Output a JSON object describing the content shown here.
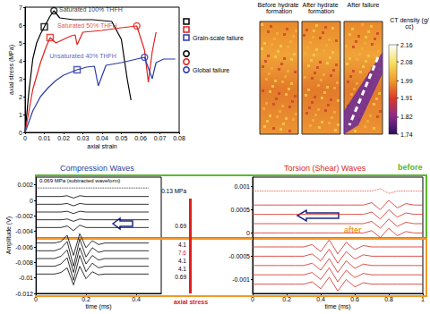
{
  "chart_data": [
    {
      "type": "line",
      "xlabel": "axial strain",
      "ylabel": "axial stress (MPa)",
      "xlim": [
        0,
        0.08
      ],
      "xticks": [
        0,
        0.01,
        0.02,
        0.03,
        0.04,
        0.05,
        0.06,
        0.07,
        0.08
      ],
      "ylim": [
        0,
        7
      ],
      "yticks": [
        0,
        1,
        2,
        3,
        4,
        5,
        6,
        7
      ],
      "grid": false,
      "legend": "right",
      "series": [
        {
          "color": "#000000",
          "line_style": "solid",
          "x": [
            0,
            0.002,
            0.004,
            0.006,
            0.008,
            0.01,
            0.013,
            0.015,
            0.018,
            0.025,
            0.035,
            0.045,
            0.05,
            0.053,
            0.055
          ],
          "values": [
            0,
            2.3,
            4.1,
            5.0,
            5.5,
            5.9,
            6.5,
            6.8,
            6.4,
            6.3,
            6.3,
            6.2,
            5.2,
            3.0,
            1.8
          ]
        },
        {
          "color": "#e0201b",
          "line_style": "solid",
          "x": [
            0,
            0.004,
            0.008,
            0.011,
            0.013,
            0.016,
            0.02,
            0.024,
            0.026,
            0.027,
            0.03,
            0.04,
            0.05,
            0.058,
            0.062,
            0.064,
            0.066,
            0.068
          ],
          "values": [
            0,
            2.4,
            3.9,
            4.8,
            5.3,
            5.0,
            5.2,
            5.4,
            5.45,
            4.9,
            5.6,
            5.7,
            5.85,
            5.95,
            4.6,
            2.8,
            4.5,
            5.6
          ]
        },
        {
          "color": "#2a3aa8",
          "line_style": "solid",
          "x": [
            0,
            0.004,
            0.008,
            0.012,
            0.016,
            0.02,
            0.027,
            0.032,
            0.036,
            0.038,
            0.042,
            0.05,
            0.058,
            0.062,
            0.066,
            0.068,
            0.072,
            0.078
          ],
          "values": [
            0,
            1.2,
            2.0,
            2.5,
            2.9,
            3.2,
            3.5,
            3.65,
            3.7,
            2.6,
            3.75,
            3.9,
            4.1,
            4.2,
            3.0,
            3.9,
            4.1,
            4.1
          ]
        },
        {
          "name": "Grain-scale failure",
          "type": "scatter",
          "marker": "square",
          "x": [
            0.01,
            0.013,
            0.027
          ],
          "values": [
            5.9,
            5.3,
            3.5
          ],
          "colors": [
            "#000000",
            "#e0201b",
            "#2a3aa8"
          ]
        },
        {
          "name": "Global failure",
          "type": "scatter",
          "marker": "circle",
          "x": [
            0.015,
            0.058,
            0.062
          ],
          "values": [
            6.8,
            5.95,
            4.2
          ],
          "colors": [
            "#000000",
            "#e0201b",
            "#2a3aa8"
          ]
        }
      ],
      "annotations": [
        {
          "text": "Saturated 100% THFH",
          "x": 0.017,
          "y": 6.9,
          "color": "#000000"
        },
        {
          "text": "Saturated 50% THFH",
          "x": 0.016,
          "y": 6.0,
          "color": "#e0201b"
        },
        {
          "text": "Unsaturated 40% THFH",
          "x": 0.012,
          "y": 4.3,
          "color": "#2a3aa8"
        }
      ]
    },
    {
      "type": "line",
      "title": "Compression Waves",
      "color": "#2b3f9e",
      "xlabel": "time (ms)",
      "ylabel": "Amplitude (V)",
      "xlim": [
        0,
        0.5
      ],
      "xticks": [
        0,
        0.2,
        0.4
      ],
      "ylim": [
        -0.012,
        0.003
      ],
      "yticks": [
        0.002,
        0,
        -0.002,
        -0.004,
        -0.006,
        -0.008,
        -0.01,
        -0.012
      ],
      "grid": false,
      "x": [
        0,
        0.025,
        0.05,
        0.075,
        0.1,
        0.125,
        0.15,
        0.175,
        0.2,
        0.225,
        0.25,
        0.275,
        0.3,
        0.325,
        0.35,
        0.375,
        0.4,
        0.425,
        0.45
      ],
      "series": [
        {
          "color": "#000000",
          "line_style": "dotted",
          "values": [
            0.0016,
            0.0016,
            0.0016,
            0.0016,
            0.0016,
            0.0016,
            0.0016,
            0.0016,
            0.0016,
            0.0016,
            0.0016,
            0.0016,
            0.0016,
            0.0016,
            0.0016,
            0.0016,
            0.0016,
            0.0016,
            0.0016
          ]
        },
        {
          "color": "#000000",
          "line_style": "solid",
          "values": [
            0.0005,
            0.0005,
            0.0005,
            0.0005,
            0.0005,
            0.0006,
            0.0003,
            0.0006,
            0.0005,
            0.0005,
            0.0005,
            0.0005,
            0.0005,
            0.0005,
            0.0005,
            0.0005,
            0.0005,
            0.0005,
            0.0005
          ]
        },
        {
          "color": "#000000",
          "line_style": "solid",
          "values": [
            -0.0005,
            -0.0005,
            -0.0005,
            -0.0005,
            -0.0005,
            -0.0004,
            -0.0007,
            -0.0004,
            -0.0005,
            -0.0005,
            -0.0005,
            -0.0005,
            -0.0005,
            -0.0005,
            -0.0005,
            -0.0005,
            -0.0005,
            -0.0005,
            -0.0005
          ]
        },
        {
          "color": "#000000",
          "line_style": "solid",
          "values": [
            -0.0015,
            -0.0015,
            -0.0015,
            -0.0015,
            -0.0015,
            -0.0014,
            -0.0017,
            -0.0014,
            -0.0015,
            -0.0015,
            -0.0015,
            -0.0015,
            -0.0015,
            -0.0015,
            -0.0015,
            -0.0015,
            -0.0015,
            -0.0015,
            -0.0015
          ]
        },
        {
          "color": "#000000",
          "line_style": "solid",
          "values": [
            -0.0025,
            -0.0025,
            -0.0025,
            -0.0025,
            -0.0025,
            -0.0024,
            -0.0027,
            -0.0024,
            -0.0025,
            -0.0025,
            -0.0025,
            -0.0025,
            -0.0025,
            -0.0025,
            -0.0025,
            -0.0025,
            -0.0025,
            -0.0025,
            -0.0025
          ]
        },
        {
          "color": "#000000",
          "line_style": "solid",
          "values": [
            -0.0035,
            -0.0035,
            -0.0035,
            -0.0035,
            -0.0035,
            -0.0033,
            -0.0039,
            -0.0032,
            -0.0035,
            -0.0035,
            -0.0035,
            -0.0035,
            -0.0035,
            -0.0035,
            -0.0035,
            -0.0035,
            -0.0035,
            -0.0035,
            -0.0035
          ]
        },
        {
          "color": "#000000",
          "line_style": "solid",
          "values": [
            -0.0055,
            -0.0055,
            -0.0055,
            -0.0055,
            -0.0053,
            -0.0045,
            -0.0071,
            -0.0043,
            -0.0061,
            -0.0052,
            -0.0057,
            -0.0055,
            -0.0055,
            -0.0055,
            -0.0055,
            -0.0055,
            -0.0055,
            -0.0055,
            -0.0055
          ]
        },
        {
          "color": "#000000",
          "line_style": "solid",
          "values": [
            -0.0065,
            -0.0065,
            -0.0065,
            -0.0065,
            -0.0062,
            -0.0053,
            -0.0085,
            -0.005,
            -0.0073,
            -0.0061,
            -0.0067,
            -0.0065,
            -0.0065,
            -0.0065,
            -0.0065,
            -0.0065,
            -0.0065,
            -0.0065,
            -0.0065
          ]
        },
        {
          "color": "#000000",
          "line_style": "solid",
          "values": [
            -0.0075,
            -0.0075,
            -0.0075,
            -0.0075,
            -0.0072,
            -0.0064,
            -0.0093,
            -0.0061,
            -0.0082,
            -0.0071,
            -0.0077,
            -0.0075,
            -0.0075,
            -0.0075,
            -0.0075,
            -0.0075,
            -0.0075,
            -0.0075,
            -0.0075
          ]
        },
        {
          "color": "#000000",
          "line_style": "solid",
          "values": [
            -0.0085,
            -0.0085,
            -0.0085,
            -0.0085,
            -0.0082,
            -0.0074,
            -0.0103,
            -0.0071,
            -0.0092,
            -0.0081,
            -0.0087,
            -0.0085,
            -0.0085,
            -0.0085,
            -0.0085,
            -0.0085,
            -0.0085,
            -0.0085,
            -0.0085
          ]
        },
        {
          "color": "#000000",
          "line_style": "solid",
          "values": [
            -0.0095,
            -0.0095,
            -0.0095,
            -0.0095,
            -0.0093,
            -0.0087,
            -0.0109,
            -0.0085,
            -0.0101,
            -0.0092,
            -0.0096,
            -0.0095,
            -0.0095,
            -0.0095,
            -0.0095,
            -0.0095,
            -0.0095,
            -0.0095,
            -0.0095
          ]
        }
      ],
      "annotations": [
        {
          "text": "0.069 MPa (subtracted waveform)"
        }
      ]
    },
    {
      "type": "line",
      "title": "Torsion (Shear) Waves",
      "color": "#d42a20",
      "xlabel": "time (ms)",
      "xlim": [
        0,
        1
      ],
      "xticks": [
        0,
        0.2,
        0.4,
        0.6,
        0.8,
        1
      ],
      "ylim": [
        -0.0013,
        0.0012
      ],
      "yticks": [
        0.001,
        0.0005,
        0,
        -0.0005,
        -0.001
      ],
      "grid": false,
      "x": [
        0,
        0.05,
        0.1,
        0.15,
        0.2,
        0.25,
        0.3,
        0.35,
        0.4,
        0.45,
        0.5,
        0.55,
        0.6,
        0.65,
        0.7,
        0.75,
        0.8,
        0.85,
        0.9,
        0.95,
        1
      ],
      "series": [
        {
          "color": "#d42a20",
          "line_style": "dotted",
          "values": [
            0.0009,
            0.0009,
            0.0009,
            0.0009,
            0.0009,
            0.0009,
            0.0009,
            0.0009,
            0.0009,
            0.0009,
            0.0009,
            0.0009,
            0.0009,
            0.0009,
            0.0009,
            0.00095,
            0.00085,
            0.0009,
            0.0009,
            0.0009,
            0.0009
          ]
        },
        {
          "color": "#d42a20",
          "line_style": "solid",
          "values": [
            0.0006,
            0.0006,
            0.0006,
            0.0006,
            0.0006,
            0.0006,
            0.0006,
            0.0006,
            0.0006,
            0.0006,
            0.0006,
            0.0006,
            0.0006,
            0.0006,
            0.00065,
            0.0005,
            0.0007,
            0.00054,
            0.00063,
            0.0006,
            0.0006
          ]
        },
        {
          "color": "#d42a20",
          "line_style": "solid",
          "values": [
            0.0004,
            0.0004,
            0.0004,
            0.0004,
            0.0004,
            0.0004,
            0.0004,
            0.0004,
            0.0004,
            0.0004,
            0.0004,
            0.0004,
            0.0004,
            0.0004,
            0.00045,
            0.0003,
            0.0005,
            0.00034,
            0.00043,
            0.0004,
            0.0004
          ]
        },
        {
          "color": "#d42a20",
          "line_style": "solid",
          "values": [
            0.0002,
            0.0002,
            0.0002,
            0.0002,
            0.0002,
            0.0002,
            0.0002,
            0.0002,
            0.0002,
            0.0002,
            0.0002,
            0.0002,
            0.0002,
            0.0002,
            0.00025,
            0.0001,
            0.0003,
            0.00014,
            0.00023,
            0.0002,
            0.0002
          ]
        },
        {
          "color": "#d42a20",
          "line_style": "solid",
          "values": [
            0,
            0,
            0,
            0,
            0,
            0,
            0,
            0,
            0,
            0,
            0,
            0,
            0,
            0,
            5e-05,
            -0.0001,
            0.0001,
            -6e-05,
            3e-05,
            0,
            0
          ]
        },
        {
          "color": "#d42a20",
          "line_style": "solid",
          "values": [
            -0.0003,
            -0.0003,
            -0.0003,
            -0.0003,
            -0.0003,
            -0.0003,
            -0.0003,
            -0.00025,
            -0.0004,
            -0.00015,
            -0.00045,
            -0.0002,
            -0.00036,
            -0.00027,
            -0.0003,
            -0.0003,
            -0.0003,
            -0.0003,
            -0.0003,
            -0.0003,
            -0.0003
          ]
        },
        {
          "color": "#d42a20",
          "line_style": "solid",
          "values": [
            -0.0005,
            -0.0005,
            -0.0005,
            -0.0005,
            -0.0005,
            -0.0005,
            -0.0005,
            -0.00045,
            -0.0006,
            -0.00035,
            -0.00065,
            -0.0004,
            -0.00056,
            -0.00047,
            -0.0005,
            -0.0005,
            -0.0005,
            -0.0005,
            -0.0005,
            -0.0005,
            -0.0005
          ]
        },
        {
          "color": "#d42a20",
          "line_style": "solid",
          "values": [
            -0.0007,
            -0.0007,
            -0.0007,
            -0.0007,
            -0.0007,
            -0.0007,
            -0.0007,
            -0.00065,
            -0.0008,
            -0.00055,
            -0.00085,
            -0.0006,
            -0.00076,
            -0.00067,
            -0.0007,
            -0.0007,
            -0.0007,
            -0.0007,
            -0.0007,
            -0.0007,
            -0.0007
          ]
        },
        {
          "color": "#d42a20",
          "line_style": "solid",
          "values": [
            -0.0009,
            -0.0009,
            -0.0009,
            -0.0009,
            -0.0009,
            -0.0009,
            -0.0009,
            -0.00085,
            -0.001,
            -0.00075,
            -0.00105,
            -0.0008,
            -0.00096,
            -0.00087,
            -0.0009,
            -0.0009,
            -0.0009,
            -0.0009,
            -0.0009,
            -0.0009,
            -0.0009
          ]
        },
        {
          "color": "#d42a20",
          "line_style": "solid",
          "values": [
            -0.0011,
            -0.0011,
            -0.0011,
            -0.0011,
            -0.0011,
            -0.0011,
            -0.0011,
            -0.00105,
            -0.0012,
            -0.00095,
            -0.00125,
            -0.001,
            -0.00116,
            -0.00107,
            -0.0011,
            -0.0011,
            -0.0011,
            -0.0011,
            -0.0011,
            -0.0011,
            -0.0011
          ]
        }
      ]
    }
  ],
  "ct_scan": {
    "panel_titles": [
      "Before hydrate formation",
      "After hydrate formation",
      "After failure"
    ],
    "colorbar": {
      "label": "CT density (g/cc)",
      "range": [
        1.74,
        2.16
      ],
      "ticks": [
        2.16,
        2.08,
        1.99,
        1.91,
        1.82,
        1.74
      ]
    }
  },
  "wave_annotations": {
    "stress_labels": [
      {
        "text": "0.13 MPa",
        "color": "#000000"
      },
      {
        "text": "0.69",
        "color": "#000000"
      },
      {
        "text": "4.1",
        "color": "#000000"
      },
      {
        "text": "7.6",
        "color": "#e0201b"
      },
      {
        "text": "4.1",
        "color": "#000000"
      },
      {
        "text": "4.1",
        "color": "#000000"
      },
      {
        "text": "0.69",
        "color": "#000000"
      }
    ],
    "stress_axis": {
      "text": "axial stress",
      "color": "#e0201b"
    },
    "before": {
      "text": "before",
      "color": "#5cb82e"
    },
    "after": {
      "text": "after",
      "color": "#f09a28"
    }
  }
}
